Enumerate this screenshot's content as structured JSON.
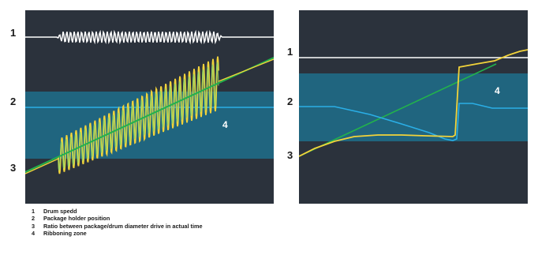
{
  "left_panel": {
    "markers": [
      "1",
      "2",
      "3"
    ],
    "zone_label": "4"
  },
  "right_panel": {
    "markers": [
      "1",
      "2",
      "3"
    ],
    "zone_label": "4"
  },
  "legend": [
    {
      "num": "1",
      "text": "Drum spedd"
    },
    {
      "num": "2",
      "text": "Package holder position"
    },
    {
      "num": "3",
      "text": "Ratio between package/drum diameter drive in actual time"
    },
    {
      "num": "4",
      "text": "Ribboning zone"
    }
  ],
  "colors": {
    "panel_bg": "#2b323c",
    "zone_band": "#1f6f8b",
    "drum_speed": "#ffffff",
    "holder_position": "#2aaee6",
    "ratio_yellow": "#f2d33a",
    "ratio_green": "#22b24c"
  }
}
